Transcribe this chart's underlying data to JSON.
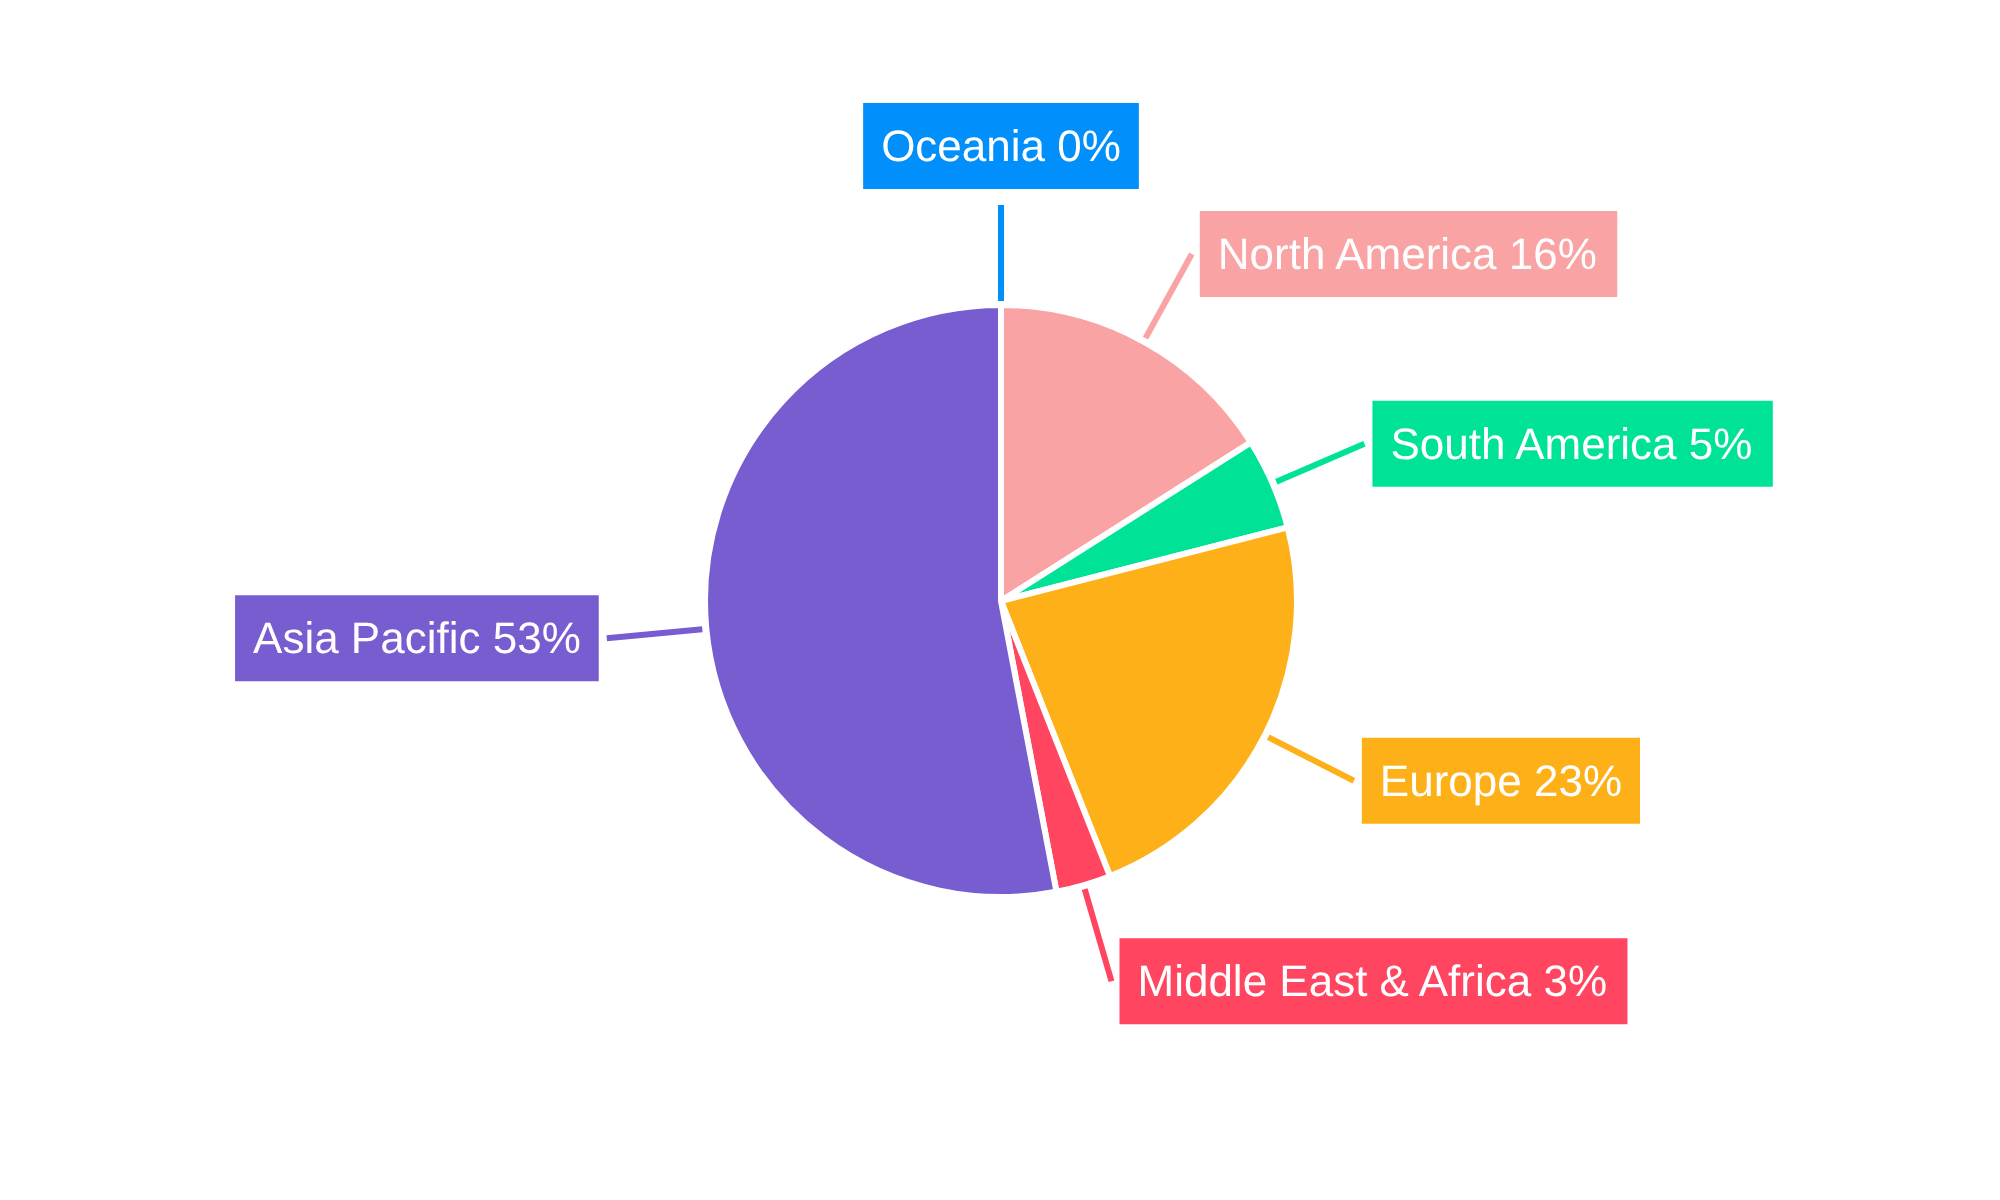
{
  "chart_data": {
    "type": "pie",
    "categories": [
      "Oceania",
      "North America",
      "South America",
      "Europe",
      "Middle East & Africa",
      "Asia Pacific"
    ],
    "values": [
      0,
      16,
      5,
      23,
      3,
      53
    ],
    "value_labels": [
      "0%",
      "16%",
      "5%",
      "23%",
      "3%",
      "53%"
    ],
    "colors": [
      "#008ffb",
      "#f9a3a4",
      "#00e396",
      "#feb019",
      "#ff4560",
      "#775dd0"
    ]
  }
}
